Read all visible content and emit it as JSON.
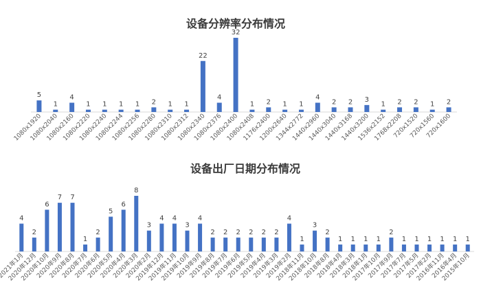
{
  "bar_color": "#4472C4",
  "axis_color": "#d9d9d9",
  "chart_data": [
    {
      "type": "bar",
      "title": "设备分辨率分布情况",
      "categories": [
        "1080x1920",
        "1080x2040",
        "1080x2160",
        "1080x2220",
        "1080x2240",
        "1080x2244",
        "1080x2256",
        "1080x2280",
        "1080x2310",
        "1080x2312",
        "1080x2340",
        "1080x2376",
        "1080x2400",
        "1080x2408",
        "1176x2400",
        "1200x2640",
        "1344x2772",
        "1440x2960",
        "1440x3040",
        "1440x3168",
        "1440x3200",
        "1536x2152",
        "1768x2208",
        "720x1520",
        "720x1560",
        "720x1600"
      ],
      "values": [
        5,
        1,
        4,
        1,
        1,
        1,
        1,
        2,
        1,
        1,
        22,
        4,
        32,
        1,
        2,
        1,
        1,
        4,
        2,
        2,
        3,
        1,
        2,
        2,
        1,
        2
      ],
      "xlabel": "",
      "ylabel": "",
      "ylim": [
        0,
        32
      ],
      "grid": false,
      "data_labels": true
    },
    {
      "type": "bar",
      "title": "设备出厂日期分布情况",
      "categories": [
        "2021年1月",
        "2020年12月",
        "2020年10月",
        "2020年9月",
        "2020年8月",
        "2020年7月",
        "2020年6月",
        "2020年5月",
        "2020年4月",
        "2020年3月",
        "2020年2月",
        "2019年12月",
        "2019年11月",
        "2019年10月",
        "2019年9月",
        "2019年8月",
        "2019年7月",
        "2019年6月",
        "2019年5月",
        "2019年4月",
        "2019年3月",
        "2019年2月",
        "2018年11月",
        "2018年10月",
        "2018年8月",
        "2018年4月",
        "2018年3月",
        "2018年1月",
        "2017年10月",
        "2017年9月",
        "2017年7月",
        "2017年5月",
        "2017年2月",
        "2016年11月",
        "2016年4月",
        "2015年10月"
      ],
      "values": [
        4,
        2,
        6,
        7,
        7,
        1,
        2,
        5,
        6,
        8,
        3,
        4,
        4,
        3,
        4,
        2,
        2,
        2,
        2,
        2,
        2,
        4,
        1,
        3,
        2,
        1,
        1,
        1,
        1,
        2,
        1,
        1,
        1,
        1,
        1,
        1
      ],
      "xlabel": "",
      "ylabel": "",
      "ylim": [
        0,
        8
      ],
      "grid": false,
      "data_labels": true
    }
  ]
}
